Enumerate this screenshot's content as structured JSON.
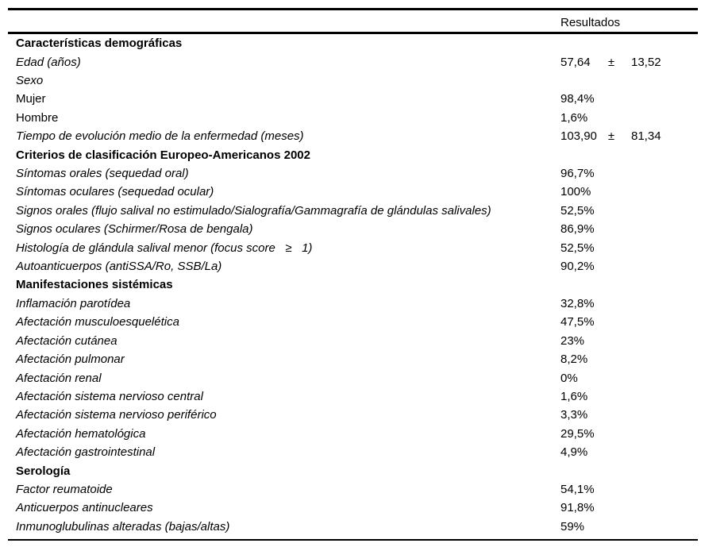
{
  "table": {
    "header": {
      "results_label": "Resultados"
    },
    "plus_minus": "±",
    "rows": [
      {
        "label": "Características demográficas",
        "style": "section",
        "value": ""
      },
      {
        "label": "Edad (años)",
        "style": "italic",
        "mean": "57,64",
        "sd": "13,52"
      },
      {
        "label": "Sexo",
        "style": "italic",
        "value": ""
      },
      {
        "label": "Mujer",
        "style": "plain",
        "value": "98,4%"
      },
      {
        "label": "Hombre",
        "style": "plain",
        "value": "1,6%"
      },
      {
        "label": "Tiempo de evolución medio de la enfermedad (meses)",
        "style": "italic",
        "mean": "103,90",
        "sd": "81,34"
      },
      {
        "label": "Criterios de clasificación Europeo-Americanos 2002",
        "style": "section",
        "value": ""
      },
      {
        "label": "Síntomas orales (sequedad oral)",
        "style": "italic",
        "value": "96,7%"
      },
      {
        "label": "Síntomas oculares (sequedad ocular)",
        "style": "italic",
        "value": "100%"
      },
      {
        "label": "Signos orales (flujo salival no estimulado/Sialografía/Gammagrafía de glándulas salivales)",
        "style": "italic",
        "value": "52,5%"
      },
      {
        "label": "Signos oculares (Schirmer/Rosa de bengala)",
        "style": "italic",
        "value": "86,9%"
      },
      {
        "label": "Histología de glándula salival menor (focus score   ≥   1)",
        "style": "italic",
        "value": "52,5%"
      },
      {
        "label": "Autoanticuerpos (antiSSA/Ro, SSB/La)",
        "style": "italic",
        "value": "90,2%"
      },
      {
        "label": "Manifestaciones sistémicas",
        "style": "section",
        "value": ""
      },
      {
        "label": "Inflamación parotídea",
        "style": "italic",
        "value": "32,8%"
      },
      {
        "label": "Afectación musculoesquelética",
        "style": "italic",
        "value": "47,5%"
      },
      {
        "label": "Afectación cutánea",
        "style": "italic",
        "value": "23%"
      },
      {
        "label": "Afectación pulmonar",
        "style": "italic",
        "value": "8,2%"
      },
      {
        "label": "Afectación renal",
        "style": "italic",
        "value": "0%"
      },
      {
        "label": "Afectación sistema nervioso central",
        "style": "italic",
        "value": "1,6%"
      },
      {
        "label": "Afectación sistema nervioso periférico",
        "style": "italic",
        "value": "3,3%"
      },
      {
        "label": "Afectación hematológica",
        "style": "italic",
        "value": "29,5%"
      },
      {
        "label": "Afectación gastrointestinal",
        "style": "italic",
        "value": "4,9%"
      },
      {
        "label": "Serología",
        "style": "section",
        "value": ""
      },
      {
        "label": "Factor reumatoide",
        "style": "italic",
        "value": "54,1%"
      },
      {
        "label": "Anticuerpos antinucleares",
        "style": "italic",
        "value": "91,8%"
      },
      {
        "label": "Inmunoglubulinas alteradas (bajas/altas)",
        "style": "italic",
        "value": "59%"
      }
    ]
  }
}
